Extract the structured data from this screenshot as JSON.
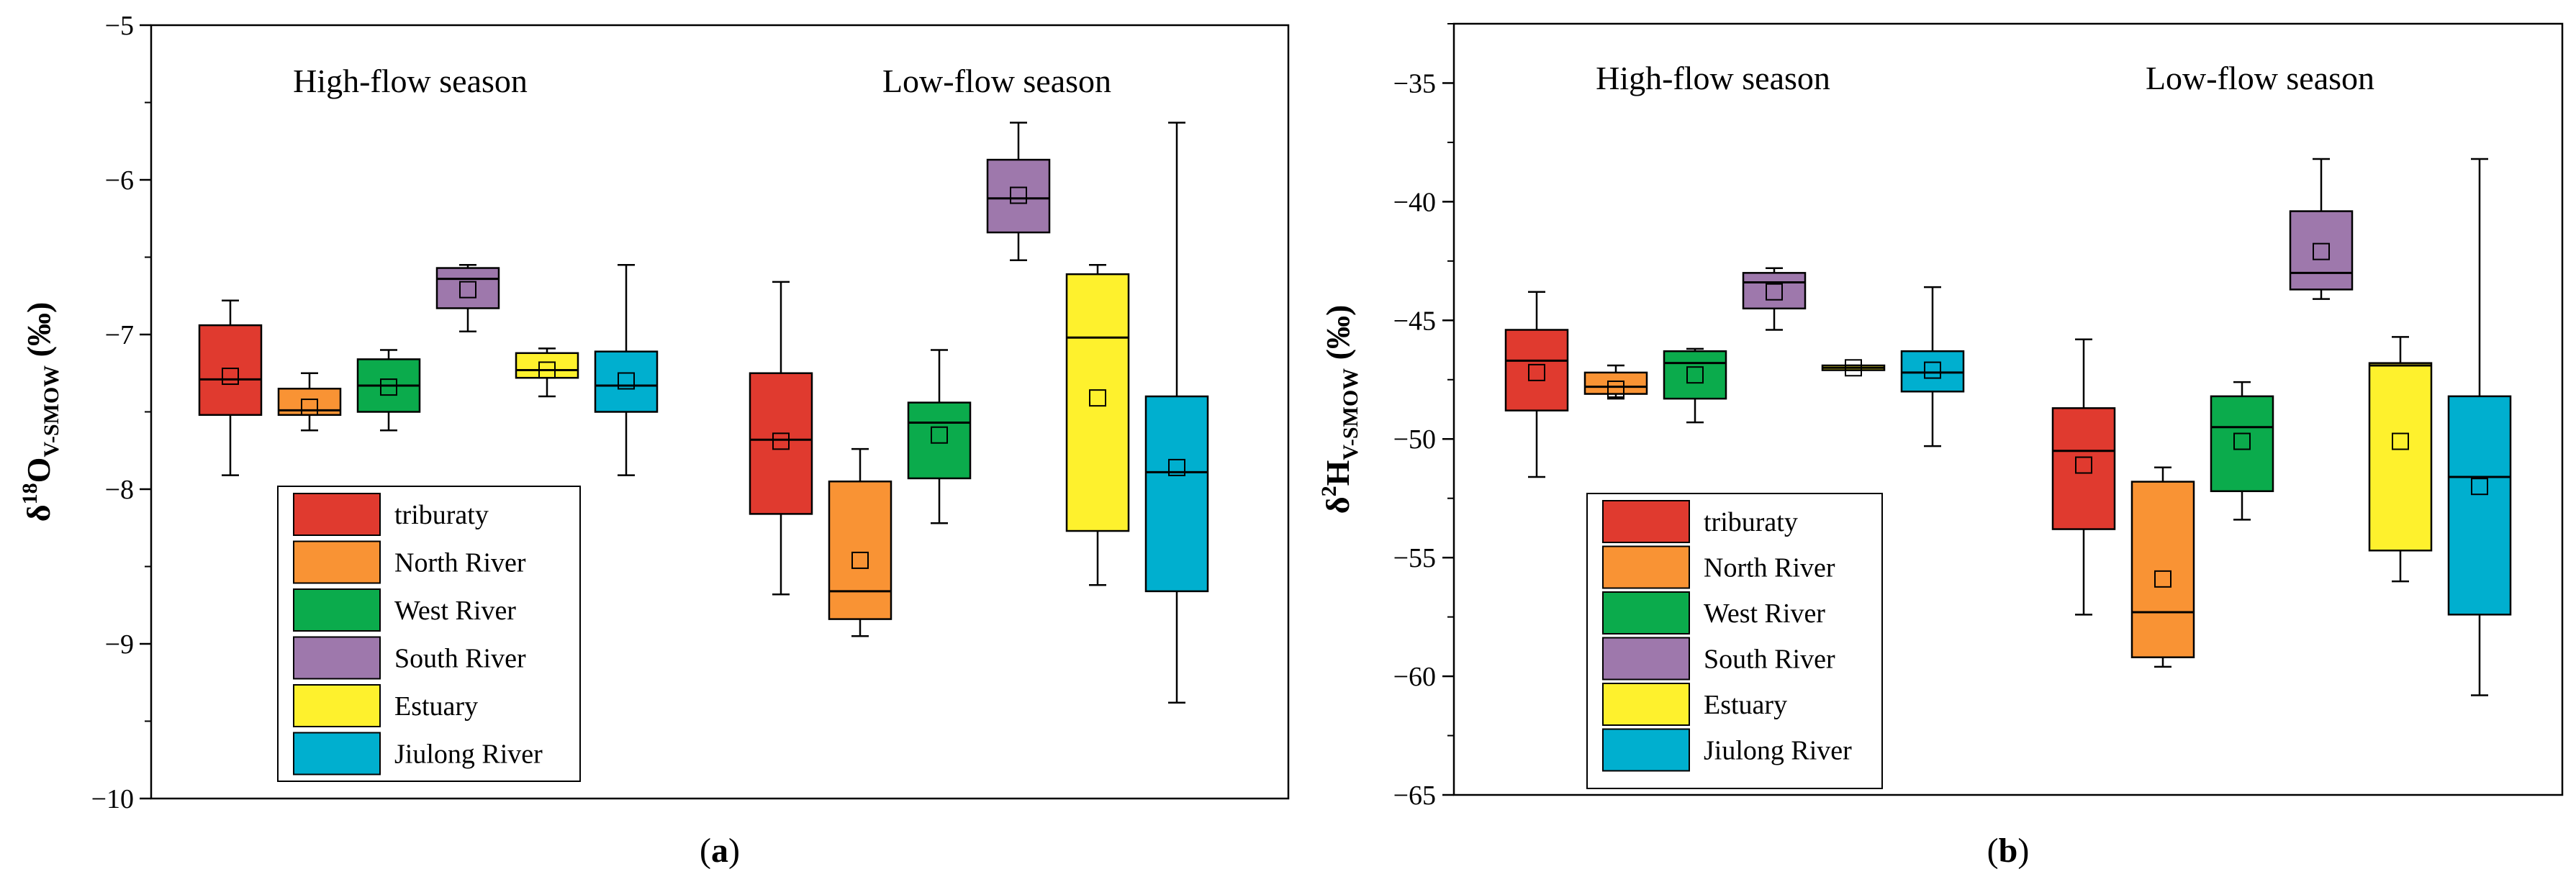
{
  "chart_data": [
    {
      "type": "box",
      "panel_label": "a",
      "ylabel_main": "δ",
      "ylabel_sup": "18",
      "ylabel_element": "O",
      "ylabel_sub": "V-SMOW",
      "ylabel_unit": " (‰)",
      "ylim": [
        -10,
        -5
      ],
      "yticks": [
        -5,
        -6,
        -7,
        -8,
        -9,
        -10
      ],
      "tick_labels": [
        "−5",
        "−6",
        "−7",
        "−8",
        "−9",
        "−10"
      ],
      "groups": [
        "High-flow season",
        "Low-flow season"
      ],
      "series": [
        {
          "name": "triburaty",
          "color": "#e03a2f",
          "high": {
            "min": -7.91,
            "q1": -7.52,
            "median": -7.29,
            "q3": -6.94,
            "max": -6.78,
            "mean": -7.27
          },
          "low": {
            "min": -8.68,
            "q1": -8.16,
            "median": -7.68,
            "q3": -7.25,
            "max": -6.66,
            "mean": -7.69
          }
        },
        {
          "name": "North River",
          "color": "#f99334",
          "high": {
            "min": -7.62,
            "q1": -7.52,
            "median": -7.49,
            "q3": -7.35,
            "max": -7.25,
            "mean": -7.47
          },
          "low": {
            "min": -8.95,
            "q1": -8.84,
            "median": -8.66,
            "q3": -7.95,
            "max": -7.74,
            "mean": -8.46
          }
        },
        {
          "name": "West River",
          "color": "#0bab4c",
          "high": {
            "min": -7.62,
            "q1": -7.5,
            "median": -7.33,
            "q3": -7.16,
            "max": -7.1,
            "mean": -7.34
          },
          "low": {
            "min": -8.22,
            "q1": -7.93,
            "median": -7.57,
            "q3": -7.44,
            "max": -7.1,
            "mean": -7.65
          }
        },
        {
          "name": "South River",
          "color": "#9e78ac",
          "high": {
            "min": -6.98,
            "q1": -6.83,
            "median": -6.64,
            "q3": -6.57,
            "max": -6.55,
            "mean": -6.71
          },
          "low": {
            "min": -6.52,
            "q1": -6.34,
            "median": -6.12,
            "q3": -5.87,
            "max": -5.63,
            "mean": -6.1
          }
        },
        {
          "name": "Estuary",
          "color": "#fef12d",
          "high": {
            "min": -7.4,
            "q1": -7.28,
            "median": -7.23,
            "q3": -7.12,
            "max": -7.09,
            "mean": -7.23
          },
          "low": {
            "min": -8.62,
            "q1": -8.27,
            "median": -7.02,
            "q3": -6.61,
            "max": -6.55,
            "mean": -7.41
          }
        },
        {
          "name": "Jiulong River",
          "color": "#00afcf",
          "high": {
            "min": -7.91,
            "q1": -7.5,
            "median": -7.33,
            "q3": -7.11,
            "max": -6.55,
            "mean": -7.3
          },
          "low": {
            "min": -9.38,
            "q1": -8.66,
            "median": -7.89,
            "q3": -7.4,
            "max": -5.63,
            "mean": -7.86
          }
        }
      ]
    },
    {
      "type": "box",
      "panel_label": "b",
      "ylabel_main": "δ",
      "ylabel_sup": "2",
      "ylabel_element": "H",
      "ylabel_sub": "V-SMOW",
      "ylabel_unit": " (‰)",
      "ylim": [
        -65,
        -32.5
      ],
      "yticks": [
        -35,
        -40,
        -45,
        -50,
        -55,
        -60,
        -65
      ],
      "tick_labels": [
        "−35",
        "−40",
        "−45",
        "−50",
        "−55",
        "−60",
        "−65"
      ],
      "groups": [
        "High-flow season",
        "Low-flow season"
      ],
      "series": [
        {
          "name": "triburaty",
          "color": "#e03a2f",
          "high": {
            "min": -51.6,
            "q1": -48.8,
            "median": -46.7,
            "q3": -45.4,
            "max": -43.8,
            "mean": -47.2
          },
          "low": {
            "min": -57.4,
            "q1": -53.8,
            "median": -50.5,
            "q3": -48.7,
            "max": -45.8,
            "mean": -51.1
          }
        },
        {
          "name": "North River",
          "color": "#f99334",
          "high": {
            "min": -48.3,
            "q1": -48.1,
            "median": -47.8,
            "q3": -47.2,
            "max": -46.9,
            "mean": -47.9
          },
          "low": {
            "min": -59.6,
            "q1": -59.2,
            "median": -57.3,
            "q3": -51.8,
            "max": -51.2,
            "mean": -55.9
          }
        },
        {
          "name": "West River",
          "color": "#0bab4c",
          "high": {
            "min": -49.3,
            "q1": -48.3,
            "median": -46.8,
            "q3": -46.3,
            "max": -46.2,
            "mean": -47.3
          },
          "low": {
            "min": -53.4,
            "q1": -52.2,
            "median": -49.5,
            "q3": -48.2,
            "max": -47.6,
            "mean": -50.1
          }
        },
        {
          "name": "South River",
          "color": "#9e78ac",
          "high": {
            "min": -45.4,
            "q1": -44.5,
            "median": -43.4,
            "q3": -43.0,
            "max": -42.8,
            "mean": -43.8
          },
          "low": {
            "min": -44.1,
            "q1": -43.7,
            "median": -43.0,
            "q3": -40.4,
            "max": -38.2,
            "mean": -42.1
          }
        },
        {
          "name": "Estuary",
          "color": "#fef12d",
          "high": {
            "min": -47.1,
            "q1": -47.1,
            "median": -47.0,
            "q3": -46.9,
            "max": -46.9,
            "mean": -47.0
          },
          "low": {
            "min": -56.0,
            "q1": -54.7,
            "median": -46.9,
            "q3": -46.8,
            "max": -45.7,
            "mean": -50.1
          }
        },
        {
          "name": "Jiulong River",
          "color": "#00afcf",
          "high": {
            "min": -50.3,
            "q1": -48.0,
            "median": -47.2,
            "q3": -46.3,
            "max": -43.6,
            "mean": -47.1
          },
          "low": {
            "min": -60.8,
            "q1": -57.4,
            "median": -51.6,
            "q3": -48.2,
            "max": -38.2,
            "mean": -52.0
          }
        }
      ]
    }
  ]
}
